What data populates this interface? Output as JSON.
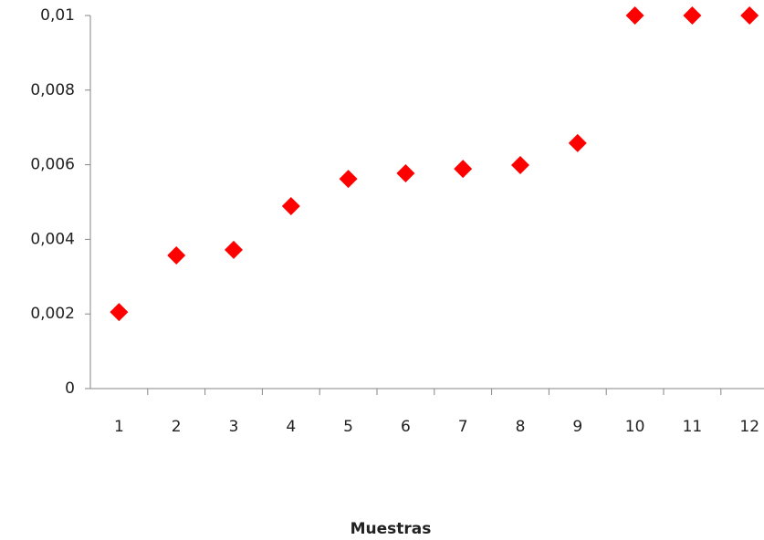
{
  "chart_data": {
    "type": "scatter",
    "categories": [
      "1",
      "2",
      "3",
      "4",
      "5",
      "6",
      "7",
      "8",
      "9",
      "10",
      "11",
      "12"
    ],
    "values": [
      0.00205,
      0.00357,
      0.00372,
      0.00489,
      0.00562,
      0.00577,
      0.00589,
      0.00599,
      0.00658,
      0.01,
      0.01,
      0.01
    ],
    "color": "#ff0000",
    "marker": "diamond",
    "xlabel": "Muestras",
    "ylim": [
      0,
      0.01
    ],
    "yticks": [
      0,
      {
        "value": 0.002,
        "label": "0,002"
      },
      {
        "value": 0.004,
        "label": "0,004"
      },
      {
        "value": 0.006,
        "label": "0,006"
      },
      {
        "value": 0.008,
        "label": "0,008"
      },
      {
        "value": 0.01,
        "label": "0,01"
      }
    ],
    "grid": false
  }
}
